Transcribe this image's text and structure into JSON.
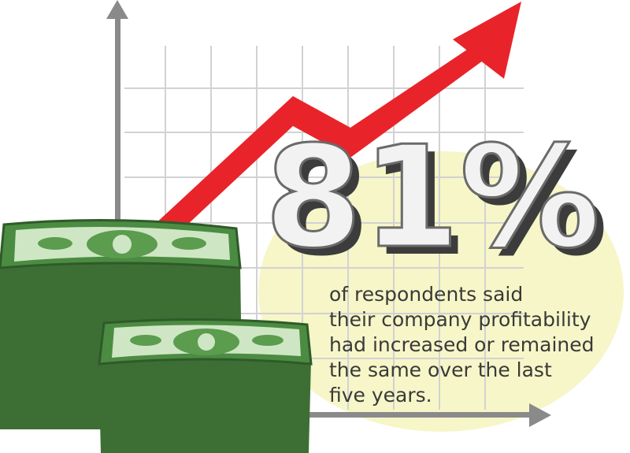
{
  "stat": "81%",
  "caption": [
    "of respondents said",
    "their company profitability",
    "had increased or remained",
    "the same over the last",
    "five years."
  ]
}
